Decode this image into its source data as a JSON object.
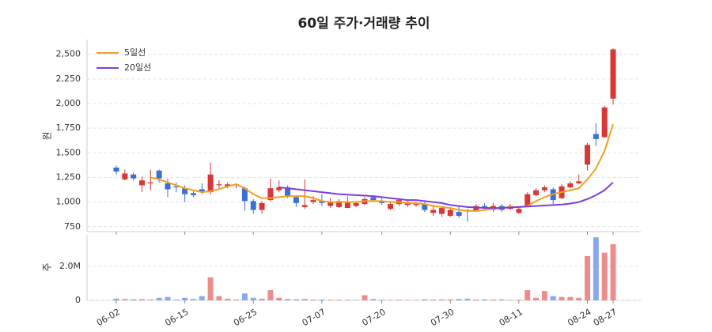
{
  "chart_data": [
    {
      "type": "candlestick",
      "title": "60일 주가·거래량 추이",
      "ylabel": "원",
      "open": [
        1350,
        1230,
        1280,
        1170,
        1190,
        1320,
        1190,
        1160,
        1140,
        1090,
        1130,
        1100,
        1170,
        1160,
        1170,
        1140,
        1010,
        920,
        1020,
        1120,
        1150,
        1050,
        950,
        1000,
        1010,
        960,
        950,
        940,
        960,
        980,
        1050,
        1010,
        930,
        980,
        970,
        970,
        980,
        890,
        880,
        860,
        900,
        920,
        910,
        960,
        920,
        960,
        930,
        890,
        960,
        1070,
        1120,
        1130,
        1040,
        1150,
        1190,
        1380,
        1690,
        1660,
        2050
      ],
      "high": [
        1370,
        1330,
        1300,
        1260,
        1330,
        1330,
        1240,
        1200,
        1170,
        1110,
        1190,
        1400,
        1220,
        1200,
        1190,
        1160,
        1030,
        1010,
        1240,
        1220,
        1170,
        1070,
        1230,
        1060,
        1080,
        1040,
        1030,
        1060,
        1010,
        1050,
        1070,
        1040,
        1010,
        1040,
        1010,
        1000,
        1000,
        960,
        960,
        940,
        960,
        930,
        980,
        990,
        990,
        980,
        980,
        950,
        1100,
        1140,
        1170,
        1150,
        1180,
        1210,
        1280,
        1600,
        1800,
        1980,
        2560
      ],
      "low": [
        1280,
        1220,
        1220,
        1100,
        1120,
        1200,
        1050,
        1100,
        1000,
        1050,
        1080,
        1080,
        1140,
        1140,
        1140,
        910,
        880,
        880,
        1010,
        1100,
        1040,
        950,
        930,
        980,
        960,
        940,
        940,
        940,
        950,
        970,
        1000,
        970,
        920,
        960,
        950,
        950,
        900,
        860,
        850,
        850,
        840,
        800,
        900,
        920,
        900,
        900,
        920,
        880,
        950,
        1060,
        1100,
        980,
        1030,
        1140,
        1180,
        1320,
        1570,
        1650,
        1990
      ],
      "close": [
        1310,
        1290,
        1240,
        1220,
        1200,
        1240,
        1130,
        1150,
        1080,
        1070,
        1100,
        1280,
        1180,
        1180,
        1180,
        1010,
        920,
        990,
        1140,
        1150,
        1060,
        990,
        970,
        1020,
        990,
        1000,
        1010,
        1000,
        990,
        1030,
        1020,
        990,
        980,
        1020,
        1000,
        980,
        920,
        920,
        940,
        920,
        860,
        910,
        960,
        940,
        960,
        920,
        960,
        930,
        1080,
        1120,
        1150,
        1020,
        1160,
        1190,
        1210,
        1580,
        1640,
        1960,
        2550
      ],
      "up_color": "#d93636",
      "down_color": "#3a6fd8",
      "series": [
        {
          "name": "5일선",
          "color": "#f0a020",
          "values": [
            null,
            null,
            null,
            null,
            1250,
            1230,
            1200,
            1170,
            1140,
            1120,
            1100,
            1110,
            1130,
            1160,
            1180,
            1140,
            1080,
            1040,
            1040,
            1050,
            1060,
            1060,
            1060,
            1040,
            1010,
            1000,
            1000,
            1000,
            1000,
            1010,
            1010,
            1010,
            1000,
            1000,
            990,
            990,
            980,
            960,
            950,
            940,
            920,
            910,
            910,
            920,
            930,
            940,
            950,
            950,
            960,
            1010,
            1050,
            1080,
            1100,
            1120,
            1140,
            1230,
            1340,
            1520,
            1790
          ]
        },
        {
          "name": "20일선",
          "color": "#7b3fe0",
          "values": [
            null,
            null,
            null,
            null,
            null,
            null,
            null,
            null,
            null,
            null,
            null,
            null,
            null,
            null,
            null,
            null,
            null,
            null,
            null,
            1150,
            1140,
            1130,
            1120,
            1110,
            1100,
            1090,
            1080,
            1075,
            1070,
            1065,
            1060,
            1050,
            1040,
            1030,
            1020,
            1020,
            1010,
            1000,
            990,
            970,
            960,
            950,
            945,
            940,
            940,
            940,
            945,
            950,
            955,
            960,
            965,
            970,
            975,
            985,
            1000,
            1030,
            1070,
            1120,
            1200
          ]
        }
      ],
      "ylim": [
        700,
        2650
      ],
      "yticks": [
        {
          "value": 750,
          "label": "750"
        },
        {
          "value": 1000,
          "label": "1,000"
        },
        {
          "value": 1250,
          "label": "1,250"
        },
        {
          "value": 1500,
          "label": "1,500"
        },
        {
          "value": 1750,
          "label": "1,750"
        },
        {
          "value": 2000,
          "label": "2,000"
        },
        {
          "value": 2250,
          "label": "2,250"
        },
        {
          "value": 2500,
          "label": "2,500"
        }
      ],
      "grid": true,
      "legend": "upper left"
    },
    {
      "type": "bar",
      "ylabel": "주",
      "categories": [
        "06-02",
        null,
        null,
        null,
        null,
        null,
        null,
        null,
        "06-15",
        null,
        null,
        null,
        null,
        null,
        null,
        null,
        "06-25",
        null,
        null,
        null,
        null,
        null,
        null,
        null,
        "07-07",
        null,
        null,
        null,
        null,
        null,
        null,
        "07-20",
        null,
        null,
        null,
        null,
        null,
        null,
        null,
        "07-30",
        null,
        null,
        null,
        null,
        null,
        null,
        null,
        "08-11",
        null,
        null,
        null,
        null,
        null,
        null,
        null,
        "08-24",
        null,
        null,
        "08-27"
      ],
      "values": [
        100000,
        80000,
        60000,
        70000,
        50000,
        150000,
        200000,
        50000,
        150000,
        80000,
        250000,
        1350000,
        250000,
        100000,
        50000,
        400000,
        150000,
        100000,
        600000,
        150000,
        80000,
        60000,
        80000,
        50000,
        50000,
        40000,
        40000,
        40000,
        30000,
        300000,
        80000,
        40000,
        30000,
        40000,
        30000,
        30000,
        60000,
        50000,
        60000,
        60000,
        80000,
        100000,
        50000,
        60000,
        50000,
        60000,
        30000,
        40000,
        600000,
        150000,
        550000,
        250000,
        200000,
        200000,
        150000,
        2600000,
        3700000,
        2800000,
        3300000
      ],
      "up_color": "#ec8c8c",
      "down_color": "#8aa8ee",
      "ylim": [
        0,
        3850000
      ],
      "yticks": [
        0,
        {
          "value": 2000000,
          "label": "2.0M"
        }
      ],
      "grid": true
    }
  ]
}
